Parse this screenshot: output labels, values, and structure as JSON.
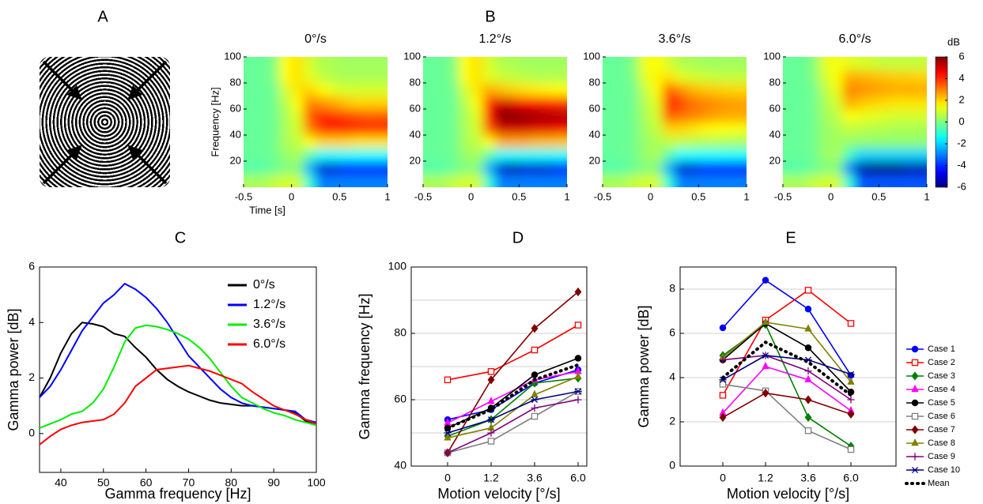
{
  "panel_labels": [
    "A",
    "B",
    "C",
    "D",
    "E"
  ],
  "chart_data": [
    {
      "type": "heatmap",
      "title": "0°/s",
      "xlabel": "Time [s]",
      "ylabel": "Frequency [Hz]",
      "x": [
        -0.4375,
        -0.3125,
        -0.1875,
        -0.0625,
        0.0625,
        0.1875,
        0.3125,
        0.4375,
        0.5625,
        0.6875,
        0.8125,
        0.9375
      ],
      "y": [
        5,
        15,
        25,
        35,
        45,
        55,
        65,
        75,
        85,
        95
      ],
      "z": [
        [
          0.5,
          0.5,
          0.8,
          1,
          1,
          -1,
          -3,
          -3,
          -3,
          -3,
          -3,
          -3
        ],
        [
          -0.5,
          -0.5,
          -0.3,
          0,
          0,
          -2.5,
          -5,
          -5,
          -4.5,
          -4.5,
          -4.5,
          -4.5
        ],
        [
          -0.3,
          -0.3,
          -0.2,
          0.3,
          0.5,
          -0.5,
          -1.5,
          -1.5,
          -1.5,
          -1.5,
          -1.5,
          -1.5
        ],
        [
          -0.3,
          -0.3,
          -0.2,
          0.5,
          0.8,
          1.5,
          2,
          2,
          2,
          1.8,
          1.8,
          1.8
        ],
        [
          -0.3,
          -0.3,
          -0.2,
          0.5,
          1,
          3,
          4,
          4.2,
          4.2,
          4,
          4,
          4
        ],
        [
          -0.3,
          -0.3,
          -0.2,
          0.5,
          1.2,
          3.5,
          4,
          4,
          3.8,
          3.6,
          3.5,
          3.5
        ],
        [
          -0.3,
          -0.3,
          -0.2,
          0.7,
          1.5,
          3,
          2.8,
          2.5,
          2.2,
          2,
          2,
          2
        ],
        [
          -0.3,
          -0.3,
          -0.2,
          1,
          1.8,
          2,
          1.5,
          1.2,
          1,
          1,
          1,
          1
        ],
        [
          -0.3,
          -0.3,
          0,
          1.5,
          1.8,
          1.2,
          0.8,
          0.6,
          0.5,
          0.5,
          0.5,
          0.5
        ],
        [
          -0.3,
          -0.3,
          0,
          1.5,
          1.8,
          1,
          0.6,
          0.5,
          0.4,
          0.4,
          0.4,
          0.4
        ]
      ],
      "xlim": [
        -0.5,
        1
      ],
      "ylim": [
        0,
        100
      ],
      "xticks": [
        -0.5,
        0,
        0.5,
        1
      ],
      "yticks": [
        20,
        40,
        60,
        80,
        100
      ]
    },
    {
      "type": "heatmap",
      "title": "1.2°/s",
      "x": [
        -0.4375,
        -0.3125,
        -0.1875,
        -0.0625,
        0.0625,
        0.1875,
        0.3125,
        0.4375,
        0.5625,
        0.6875,
        0.8125,
        0.9375
      ],
      "y": [
        5,
        15,
        25,
        35,
        45,
        55,
        65,
        75,
        85,
        95
      ],
      "z": [
        [
          0.5,
          0.5,
          0.8,
          1,
          1,
          -1,
          -3,
          -3,
          -3,
          -3,
          -3,
          -3
        ],
        [
          -0.5,
          -0.5,
          -0.3,
          0,
          0,
          -2.5,
          -5,
          -5.5,
          -5,
          -5,
          -5,
          -4.5
        ],
        [
          -0.3,
          -0.3,
          -0.2,
          0.3,
          0.5,
          -0.5,
          -1.5,
          -1.5,
          -1.5,
          -1.5,
          -1.5,
          -1.5
        ],
        [
          -0.3,
          -0.3,
          -0.2,
          0.5,
          0.8,
          1.5,
          2.5,
          2.5,
          2.5,
          2.3,
          2.3,
          2.2
        ],
        [
          -0.3,
          -0.3,
          -0.2,
          0.5,
          1,
          3.5,
          5,
          5,
          5,
          4.8,
          4.8,
          4.6
        ],
        [
          -0.3,
          -0.3,
          -0.2,
          0.5,
          1.2,
          4.5,
          6,
          6,
          5.8,
          5.6,
          5.5,
          5.4
        ],
        [
          -0.3,
          -0.3,
          -0.2,
          0.7,
          1.5,
          4,
          5,
          4.8,
          4.5,
          4.3,
          4.2,
          4
        ],
        [
          -0.3,
          -0.3,
          -0.2,
          1,
          1.8,
          2.5,
          2.2,
          2,
          1.8,
          1.7,
          1.6,
          1.5
        ],
        [
          -0.3,
          -0.3,
          0,
          1.5,
          1.8,
          1.2,
          0.9,
          0.8,
          0.7,
          0.6,
          0.6,
          0.6
        ],
        [
          -0.3,
          -0.3,
          0,
          1.5,
          1.8,
          1,
          0.6,
          0.5,
          0.4,
          0.4,
          0.4,
          0.4
        ]
      ],
      "xlim": [
        -0.5,
        1
      ],
      "ylim": [
        0,
        100
      ],
      "xticks": [
        -0.5,
        0,
        0.5,
        1
      ],
      "yticks": [
        20,
        40,
        60,
        80,
        100
      ]
    },
    {
      "type": "heatmap",
      "title": "3.6°/s",
      "x": [
        -0.4375,
        -0.3125,
        -0.1875,
        -0.0625,
        0.0625,
        0.1875,
        0.3125,
        0.4375,
        0.5625,
        0.6875,
        0.8125,
        0.9375
      ],
      "y": [
        5,
        15,
        25,
        35,
        45,
        55,
        65,
        75,
        85,
        95
      ],
      "z": [
        [
          0.5,
          0.5,
          0.8,
          1,
          1,
          -1,
          -3,
          -3,
          -3,
          -3,
          -3,
          -3
        ],
        [
          -0.5,
          -0.5,
          -0.3,
          0,
          0,
          -2.5,
          -5,
          -5,
          -4.5,
          -4.5,
          -4.5,
          -4.5
        ],
        [
          -0.3,
          -0.3,
          -0.2,
          0.3,
          0.5,
          -0.5,
          -1.5,
          -1.5,
          -1.5,
          -1.5,
          -1.5,
          -1.5
        ],
        [
          -0.3,
          -0.3,
          -0.2,
          0.3,
          0.5,
          0.8,
          0.8,
          0.7,
          0.6,
          0.6,
          0.5,
          0.5
        ],
        [
          -0.3,
          -0.3,
          -0.2,
          0.4,
          0.8,
          2,
          2,
          1.8,
          1.6,
          1.5,
          1.5,
          1.4
        ],
        [
          -0.3,
          -0.3,
          -0.2,
          0.5,
          1,
          3.5,
          3.2,
          3,
          2.8,
          2.6,
          2.5,
          2.5
        ],
        [
          -0.3,
          -0.3,
          -0.2,
          0.6,
          1.2,
          4.2,
          3.8,
          3.2,
          3,
          2.8,
          2.7,
          2.6
        ],
        [
          -0.3,
          -0.3,
          -0.2,
          0.8,
          1.5,
          3.5,
          2.8,
          2.4,
          2.2,
          2.1,
          2,
          2
        ],
        [
          -0.3,
          -0.3,
          0,
          1.2,
          1.6,
          1.8,
          1.2,
          1,
          0.9,
          0.8,
          0.8,
          0.8
        ],
        [
          -0.3,
          -0.3,
          0,
          1.3,
          1.5,
          1,
          0.6,
          0.5,
          0.4,
          0.4,
          0.4,
          0.4
        ]
      ],
      "xlim": [
        -0.5,
        1
      ],
      "ylim": [
        0,
        100
      ],
      "xticks": [
        -0.5,
        0,
        0.5,
        1
      ],
      "yticks": [
        20,
        40,
        60,
        80,
        100
      ]
    },
    {
      "type": "heatmap",
      "title": "6.0°/s",
      "x": [
        -0.4375,
        -0.3125,
        -0.1875,
        -0.0625,
        0.0625,
        0.1875,
        0.3125,
        0.4375,
        0.5625,
        0.6875,
        0.8125,
        0.9375
      ],
      "y": [
        5,
        15,
        25,
        35,
        45,
        55,
        65,
        75,
        85,
        95
      ],
      "z": [
        [
          0.5,
          0.5,
          0.8,
          1,
          1,
          -1,
          -3.5,
          -3.5,
          -3.5,
          -3.5,
          -3.5,
          -3.5
        ],
        [
          -0.5,
          -0.5,
          -0.3,
          0,
          0,
          -3,
          -5.5,
          -6,
          -6,
          -6,
          -5.5,
          -5.5
        ],
        [
          -0.3,
          -0.3,
          -0.2,
          0.3,
          0.5,
          -0.8,
          -2,
          -2,
          -2,
          -2,
          -2,
          -2
        ],
        [
          -0.3,
          -0.3,
          -0.2,
          0.3,
          0.4,
          0.3,
          0.2,
          0.2,
          0.2,
          0.2,
          0.2,
          0.2
        ],
        [
          -0.3,
          -0.3,
          -0.2,
          0.3,
          0.5,
          0.8,
          0.7,
          0.6,
          0.6,
          0.5,
          0.5,
          0.5
        ],
        [
          -0.3,
          -0.3,
          -0.2,
          0.4,
          0.7,
          1.5,
          1.3,
          1.2,
          1.1,
          1,
          1,
          1
        ],
        [
          -0.3,
          -0.3,
          -0.2,
          0.5,
          1,
          2.5,
          2.2,
          2,
          1.9,
          1.8,
          1.8,
          1.8
        ],
        [
          -0.3,
          -0.3,
          -0.2,
          0.7,
          1.3,
          3,
          2.8,
          2.7,
          2.6,
          2.5,
          2.5,
          2.5
        ],
        [
          -0.3,
          -0.3,
          0,
          1,
          1.5,
          2.5,
          2.4,
          2.3,
          2.2,
          2.1,
          2.1,
          2
        ],
        [
          -0.3,
          -0.3,
          0,
          1.2,
          1.4,
          1.2,
          1,
          0.9,
          0.8,
          0.8,
          0.8,
          0.8
        ]
      ],
      "xlim": [
        -0.5,
        1
      ],
      "ylim": [
        0,
        100
      ],
      "xticks": [
        -0.5,
        0,
        0.5,
        1
      ],
      "yticks": [
        20,
        40,
        60,
        80,
        100
      ]
    },
    {
      "type": "colorbar",
      "label": "dB",
      "clim": [
        -6,
        6
      ],
      "ticks": [
        -6,
        -4,
        -2,
        0,
        2,
        4,
        6
      ],
      "colormap": "jet"
    },
    {
      "type": "line",
      "xlabel": "Gamma frequency [Hz]",
      "ylabel": "Gamma power [dB]",
      "x": [
        35,
        37.5,
        40,
        42.5,
        45,
        47.5,
        50,
        52.5,
        55,
        57.5,
        60,
        62.5,
        65,
        67.5,
        70,
        72.5,
        75,
        77.5,
        80,
        82.5,
        85,
        87.5,
        90,
        92.5,
        95,
        97.5,
        100
      ],
      "xlim": [
        35,
        100
      ],
      "ylim": [
        -1.4,
        6
      ],
      "xticks": [
        40,
        50,
        60,
        70,
        80,
        90,
        100
      ],
      "yticks": [
        0,
        2,
        4,
        6
      ],
      "legend": "upper right",
      "series": [
        {
          "name": "0°/s",
          "color": "#000000",
          "values": [
            1.3,
            2.0,
            2.9,
            3.6,
            4.0,
            3.95,
            3.85,
            3.6,
            3.5,
            3.1,
            2.75,
            2.3,
            1.95,
            1.7,
            1.5,
            1.35,
            1.2,
            1.1,
            1.05,
            1.0,
            1.0,
            0.95,
            0.9,
            0.85,
            0.75,
            0.45,
            0.35
          ]
        },
        {
          "name": "1.2°/s",
          "color": "#0000ff",
          "values": [
            1.3,
            1.7,
            2.3,
            3.0,
            3.7,
            4.2,
            4.7,
            5.0,
            5.4,
            5.2,
            4.9,
            4.5,
            4.0,
            3.4,
            2.8,
            2.4,
            2.0,
            1.6,
            1.3,
            1.1,
            1.0,
            0.95,
            0.9,
            0.85,
            0.8,
            0.5,
            0.4
          ]
        },
        {
          "name": "3.6°/s",
          "color": "#00ee00",
          "values": [
            0.2,
            0.35,
            0.5,
            0.7,
            0.8,
            1.1,
            1.6,
            2.4,
            3.3,
            3.8,
            3.9,
            3.85,
            3.75,
            3.6,
            3.4,
            3.1,
            2.7,
            2.2,
            1.7,
            1.3,
            1.1,
            0.9,
            0.75,
            0.65,
            0.5,
            0.4,
            0.3
          ]
        },
        {
          "name": "6.0°/s",
          "color": "#ff0000",
          "values": [
            -0.4,
            -0.1,
            0.15,
            0.3,
            0.4,
            0.45,
            0.5,
            0.7,
            1.1,
            1.7,
            2.0,
            2.3,
            2.35,
            2.4,
            2.45,
            2.35,
            2.25,
            2.1,
            1.95,
            1.8,
            1.5,
            1.25,
            1.0,
            0.85,
            0.7,
            0.5,
            0.35
          ]
        }
      ]
    },
    {
      "type": "line",
      "xlabel": "Motion velocity [°/s]",
      "ylabel": "Gamma frequency [Hz]",
      "categories": [
        "0",
        "1.2",
        "3.6",
        "6.0"
      ],
      "ylim": [
        40,
        100
      ],
      "yticks": [
        40,
        60,
        80,
        100
      ],
      "grid_lines": [
        50,
        60,
        70,
        80,
        90
      ],
      "series": [
        {
          "color": "#0000ff",
          "marker": "circle",
          "values": [
            54,
            57,
            65,
            69
          ]
        },
        {
          "color": "#ff0000",
          "marker": "square",
          "values": [
            66,
            68.5,
            75,
            82.5
          ]
        },
        {
          "color": "#008000",
          "marker": "diamond",
          "values": [
            49,
            54,
            65,
            66.5
          ]
        },
        {
          "color": "#ff00ff",
          "marker": "triangle",
          "values": [
            53,
            59.5,
            66,
            68.5
          ]
        },
        {
          "color": "#000000",
          "marker": "circle",
          "values": [
            51.5,
            57.5,
            67.5,
            72.5
          ]
        },
        {
          "color": "#808080",
          "marker": "square",
          "values": [
            44,
            47.5,
            55,
            62.5
          ]
        },
        {
          "color": "#800000",
          "marker": "diamond",
          "values": [
            44,
            66,
            81.5,
            92.5
          ]
        },
        {
          "color": "#808000",
          "marker": "triangle",
          "values": [
            48.5,
            51.5,
            61.5,
            67
          ]
        },
        {
          "color": "#800080",
          "marker": "plus",
          "values": [
            44,
            50,
            57.5,
            60
          ]
        },
        {
          "color": "#000080",
          "marker": "star",
          "values": [
            50,
            54,
            60,
            62.5
          ]
        },
        {
          "color": "#000000",
          "style": "dotted",
          "values": [
            51.5,
            57,
            66,
            70.5
          ]
        }
      ]
    },
    {
      "type": "line",
      "xlabel": "Motion velocity [°/s]",
      "ylabel": "Gamma power [dB]",
      "categories": [
        "0",
        "1.2",
        "3.6",
        "6.0"
      ],
      "ylim": [
        0,
        9
      ],
      "yticks": [
        0,
        2,
        4,
        6,
        8
      ],
      "grid_lines": [
        2,
        4,
        6,
        8
      ],
      "legend": "outside right",
      "series": [
        {
          "name": "Case 1",
          "color": "#0000ff",
          "marker": "circle",
          "values": [
            6.25,
            8.4,
            7.1,
            4.1
          ]
        },
        {
          "name": "Case 2",
          "color": "#ff0000",
          "marker": "square",
          "values": [
            3.2,
            6.6,
            7.95,
            6.45
          ]
        },
        {
          "name": "Case 3",
          "color": "#008000",
          "marker": "diamond",
          "values": [
            5.0,
            6.4,
            2.2,
            0.9
          ]
        },
        {
          "name": "Case 4",
          "color": "#ff00ff",
          "marker": "triangle",
          "values": [
            2.4,
            4.5,
            3.9,
            2.5
          ]
        },
        {
          "name": "Case 5",
          "color": "#000000",
          "marker": "circle",
          "values": [
            4.8,
            6.45,
            5.35,
            3.35
          ]
        },
        {
          "name": "Case 6",
          "color": "#808080",
          "marker": "square",
          "values": [
            3.7,
            3.4,
            1.6,
            0.75
          ]
        },
        {
          "name": "Case 7",
          "color": "#800000",
          "marker": "diamond",
          "values": [
            2.2,
            3.3,
            3.0,
            2.35
          ]
        },
        {
          "name": "Case 8",
          "color": "#808000",
          "marker": "triangle",
          "values": [
            4.9,
            6.5,
            6.2,
            3.8
          ]
        },
        {
          "name": "Case 9",
          "color": "#800080",
          "marker": "plus",
          "values": [
            4.8,
            5.0,
            4.3,
            3.0
          ]
        },
        {
          "name": "Case 10",
          "color": "#000080",
          "marker": "star",
          "values": [
            3.9,
            5.0,
            4.8,
            4.15
          ]
        },
        {
          "name": "Mean",
          "color": "#000000",
          "style": "dotted",
          "values": [
            4.0,
            5.6,
            4.7,
            3.2
          ]
        }
      ]
    }
  ]
}
